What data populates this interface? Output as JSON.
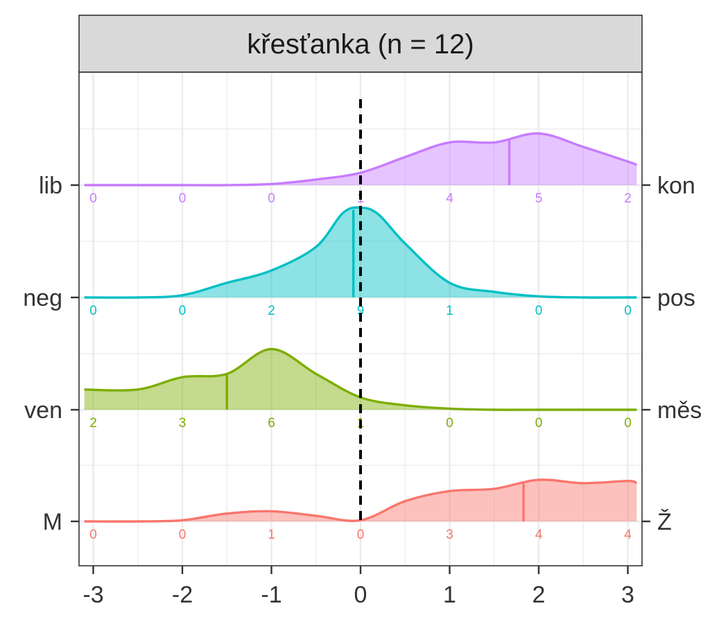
{
  "chart_data": {
    "type": "area",
    "title": "křesťanka (n = 12)",
    "xlabel": "",
    "ylabel": "",
    "xlim": [
      -3.1,
      3.1
    ],
    "x_ticks": [
      -3,
      -2,
      -1,
      0,
      1,
      2,
      3
    ],
    "x_tick_labels": [
      "-3",
      "-2",
      "-1",
      "0",
      "1",
      "2",
      "3"
    ],
    "count_positions": [
      -3,
      -2,
      -1,
      0,
      1,
      2,
      3
    ],
    "reference_line": 0,
    "grid": true,
    "legend": "none",
    "series": [
      {
        "left_label": "lib",
        "right_label": "kon",
        "color": "#C77CFF",
        "counts": [
          0,
          0,
          0,
          1,
          4,
          5,
          2
        ],
        "counts_text": [
          "0",
          "0",
          "0",
          "1",
          "4",
          "5",
          "2"
        ],
        "mean": 1.67,
        "density_x": [
          -3.1,
          -2.5,
          -2,
          -1.5,
          -1,
          -0.5,
          0,
          0.5,
          1,
          1.5,
          2,
          2.5,
          3,
          3.1
        ],
        "density_y": [
          0,
          0,
          0,
          0,
          0.01,
          0.05,
          0.11,
          0.25,
          0.38,
          0.38,
          0.46,
          0.34,
          0.21,
          0.18
        ]
      },
      {
        "left_label": "neg",
        "right_label": "pos",
        "color": "#00BFC4",
        "counts": [
          0,
          0,
          2,
          9,
          1,
          0,
          0
        ],
        "counts_text": [
          "0",
          "0",
          "2",
          "9",
          "1",
          "0",
          "0"
        ],
        "mean": -0.08,
        "density_x": [
          -3.1,
          -2.5,
          -2,
          -1.5,
          -1,
          -0.5,
          -0.2,
          0,
          0.2,
          0.5,
          1,
          1.5,
          2,
          2.5,
          3,
          3.1
        ],
        "density_y": [
          0,
          0,
          0.02,
          0.13,
          0.24,
          0.45,
          0.75,
          0.8,
          0.74,
          0.48,
          0.13,
          0.05,
          0.01,
          0,
          0,
          0
        ]
      },
      {
        "left_label": "ven",
        "right_label": "měs",
        "color": "#7CAE00",
        "counts": [
          2,
          3,
          6,
          1,
          0,
          0,
          0
        ],
        "counts_text": [
          "2",
          "3",
          "6",
          "1",
          "0",
          "0",
          "0"
        ],
        "mean": -1.5,
        "density_x": [
          -3.1,
          -2.5,
          -2,
          -1.5,
          -1,
          -0.5,
          0,
          0.5,
          1,
          1.5,
          2,
          2.5,
          3,
          3.1
        ],
        "density_y": [
          0.18,
          0.18,
          0.29,
          0.32,
          0.54,
          0.32,
          0.11,
          0.04,
          0.01,
          0,
          0,
          0,
          0,
          0
        ]
      },
      {
        "left_label": "M",
        "right_label": "Ž",
        "color": "#F8766D",
        "counts": [
          0,
          0,
          1,
          0,
          3,
          4,
          4
        ],
        "counts_text": [
          "0",
          "0",
          "1",
          "0",
          "3",
          "4",
          "4"
        ],
        "mean": 1.83,
        "density_x": [
          -3.1,
          -2.5,
          -2,
          -1.5,
          -1,
          -0.5,
          0,
          0.5,
          1,
          1.5,
          2,
          2.5,
          3,
          3.1
        ],
        "density_y": [
          0,
          0,
          0.01,
          0.07,
          0.09,
          0.05,
          0.01,
          0.18,
          0.27,
          0.29,
          0.37,
          0.34,
          0.36,
          0.34
        ]
      }
    ]
  }
}
